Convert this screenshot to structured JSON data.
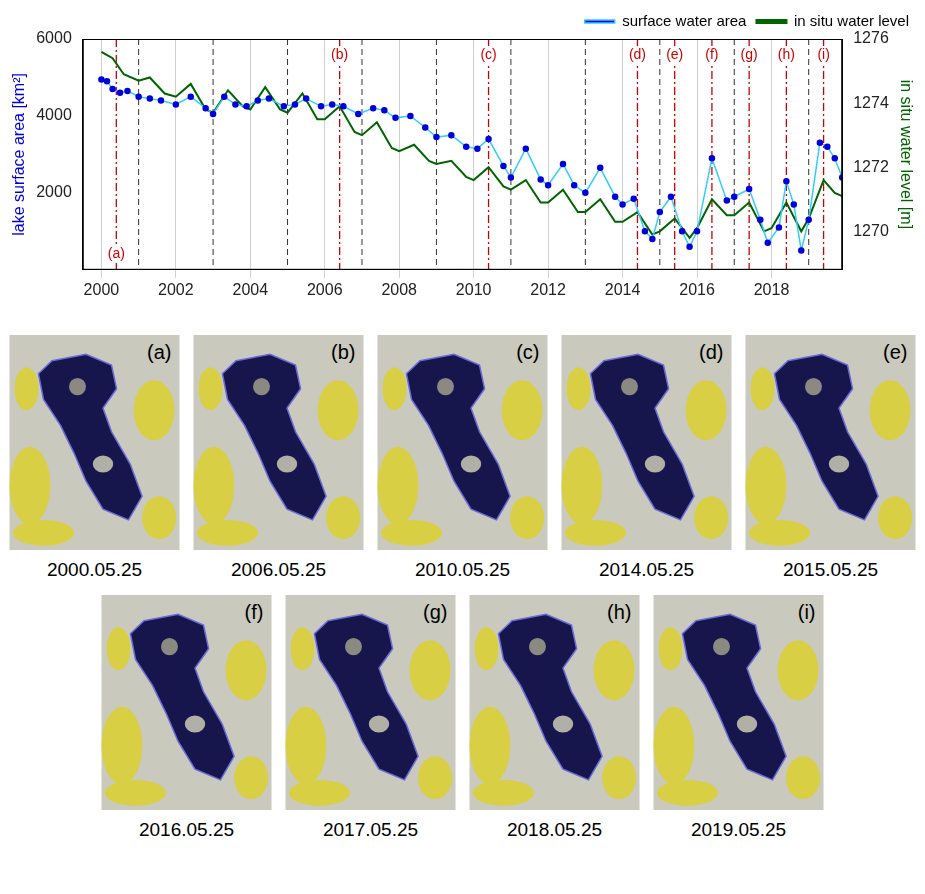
{
  "chart_data": {
    "type": "line",
    "xlim": [
      1999.5,
      2019.9
    ],
    "xticks": [
      2000,
      2002,
      2004,
      2006,
      2008,
      2010,
      2012,
      2014,
      2016,
      2018
    ],
    "y_label": "lake surface area [km²]",
    "ylim": [
      0,
      6000
    ],
    "yticks": [
      2000,
      4000,
      6000
    ],
    "y2_label": "in situ water level [m]",
    "y2lim": [
      1268.8,
      1276
    ],
    "y2ticks": [
      1270,
      1272,
      1274,
      1276
    ],
    "grid": "x",
    "legend": "top",
    "year_markers": [
      2001,
      2003,
      2005,
      2007,
      2009,
      2011,
      2013,
      2015,
      2017,
      2019
    ],
    "annotations": [
      {
        "x": 2000.4,
        "label": "(a)"
      },
      {
        "x": 2006.4,
        "label": "(b)"
      },
      {
        "x": 2010.4,
        "label": "(c)"
      },
      {
        "x": 2014.4,
        "label": "(d)"
      },
      {
        "x": 2015.4,
        "label": "(e)"
      },
      {
        "x": 2016.4,
        "label": "(f)"
      },
      {
        "x": 2017.4,
        "label": "(g)"
      },
      {
        "x": 2018.4,
        "label": "(h)"
      },
      {
        "x": 2019.4,
        "label": "(i)"
      }
    ],
    "series": [
      {
        "name": "surface water area",
        "color": "#0000dd",
        "marker": "circle",
        "line_style": "solid",
        "axis": "y",
        "x": [
          2000.0,
          2000.15,
          2000.3,
          2000.5,
          2000.7,
          2001.0,
          2001.3,
          2001.6,
          2002.0,
          2002.4,
          2002.8,
          2003.0,
          2003.3,
          2003.6,
          2003.9,
          2004.2,
          2004.5,
          2004.9,
          2005.2,
          2005.5,
          2005.9,
          2006.2,
          2006.5,
          2006.9,
          2007.3,
          2007.6,
          2007.9,
          2008.3,
          2008.7,
          2009.0,
          2009.4,
          2009.8,
          2010.1,
          2010.4,
          2010.8,
          2011.0,
          2011.4,
          2011.8,
          2012.0,
          2012.4,
          2012.7,
          2013.0,
          2013.4,
          2013.8,
          2014.0,
          2014.3,
          2014.6,
          2014.8,
          2015.0,
          2015.3,
          2015.6,
          2015.8,
          2016.0,
          2016.4,
          2016.8,
          2017.0,
          2017.4,
          2017.7,
          2017.9,
          2018.2,
          2018.4,
          2018.6,
          2018.8,
          2019.0,
          2019.3,
          2019.5,
          2019.7,
          2019.9
        ],
        "values": [
          4950,
          4900,
          4700,
          4600,
          4650,
          4500,
          4450,
          4400,
          4300,
          4500,
          4200,
          4050,
          4500,
          4300,
          4250,
          4400,
          4450,
          4250,
          4300,
          4450,
          4250,
          4300,
          4250,
          4050,
          4200,
          4150,
          3950,
          4000,
          3700,
          3450,
          3500,
          3200,
          3150,
          3400,
          2700,
          2400,
          3150,
          2350,
          2200,
          2750,
          2200,
          2000,
          2650,
          1900,
          1700,
          1850,
          1000,
          800,
          1500,
          1900,
          1000,
          600,
          1000,
          2900,
          1800,
          1900,
          2100,
          1300,
          700,
          1100,
          2300,
          1700,
          500,
          1300,
          3300,
          3200,
          2900,
          2400
        ]
      },
      {
        "name": "in situ water level",
        "color": "#006400",
        "marker": "none",
        "line_style": "solid",
        "axis": "y2",
        "x": [
          2000.0,
          2000.3,
          2000.6,
          2001.0,
          2001.3,
          2001.7,
          2002.0,
          2002.4,
          2002.8,
          2003.0,
          2003.4,
          2003.8,
          2004.0,
          2004.4,
          2004.8,
          2005.0,
          2005.4,
          2005.8,
          2006.0,
          2006.4,
          2006.8,
          2007.0,
          2007.4,
          2007.8,
          2008.0,
          2008.4,
          2008.8,
          2009.0,
          2009.4,
          2009.8,
          2010.0,
          2010.4,
          2010.8,
          2011.0,
          2011.4,
          2011.8,
          2012.0,
          2012.4,
          2012.8,
          2013.0,
          2013.4,
          2013.8,
          2014.0,
          2014.4,
          2014.8,
          2015.0,
          2015.4,
          2015.8,
          2016.0,
          2016.4,
          2016.8,
          2017.0,
          2017.4,
          2017.8,
          2018.0,
          2018.4,
          2018.8,
          2019.0,
          2019.4,
          2019.7,
          2019.9
        ],
        "values": [
          1275.6,
          1275.4,
          1274.9,
          1274.7,
          1274.8,
          1274.3,
          1274.2,
          1274.6,
          1273.8,
          1273.7,
          1274.4,
          1273.9,
          1273.8,
          1274.5,
          1273.8,
          1273.7,
          1274.3,
          1273.5,
          1273.5,
          1273.9,
          1273.1,
          1273.0,
          1273.4,
          1272.6,
          1272.5,
          1272.7,
          1272.2,
          1272.1,
          1272.2,
          1271.7,
          1271.6,
          1272.0,
          1271.4,
          1271.3,
          1271.6,
          1270.9,
          1270.9,
          1271.3,
          1270.6,
          1270.6,
          1271.0,
          1270.3,
          1270.3,
          1270.6,
          1269.9,
          1270.0,
          1270.4,
          1269.8,
          1270.1,
          1271.0,
          1270.5,
          1270.5,
          1270.9,
          1270.0,
          1270.1,
          1270.9,
          1270.0,
          1270.4,
          1271.6,
          1271.2,
          1271.1
        ]
      }
    ]
  },
  "images": [
    {
      "label": "(a)",
      "caption": "2000.05.25"
    },
    {
      "label": "(b)",
      "caption": "2006.05.25"
    },
    {
      "label": "(c)",
      "caption": "2010.05.25"
    },
    {
      "label": "(d)",
      "caption": "2014.05.25"
    },
    {
      "label": "(e)",
      "caption": "2015.05.25"
    },
    {
      "label": "(f)",
      "caption": "2016.05.25"
    },
    {
      "label": "(g)",
      "caption": "2017.05.25"
    },
    {
      "label": "(h)",
      "caption": "2018.05.25"
    },
    {
      "label": "(i)",
      "caption": "2019.05.25"
    }
  ]
}
